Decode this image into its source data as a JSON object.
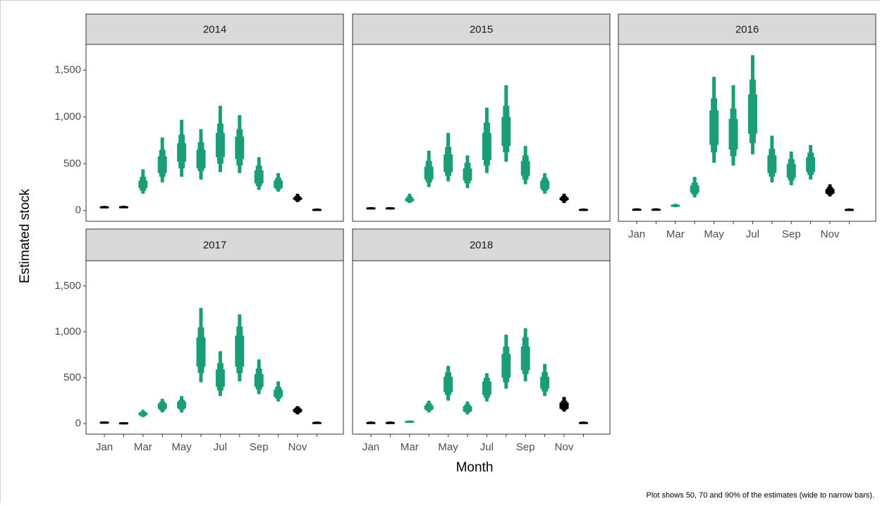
{
  "chart_data": {
    "type": "interval",
    "ylabel": "Estimated stock",
    "xlabel": "Month",
    "caption": "Plot shows 50, 70 and 90% of the estimates (wide to narrow bars).",
    "categories": [
      "Jan",
      null,
      "Mar",
      null,
      "May",
      null,
      "Jul",
      null,
      "Sep",
      null,
      "Nov",
      null
    ],
    "colors": [
      "#000000",
      "#000000",
      "#1b9e77",
      "#1b9e77",
      "#1b9e77",
      "#1b9e77",
      "#1b9e77",
      "#1b9e77",
      "#1b9e77",
      "#1b9e77",
      "#000000",
      "#000000"
    ],
    "ylim": [
      -115,
      1775
    ],
    "yticks": [
      0,
      500,
      {
        "value": 1000,
        "label": "1,000"
      },
      {
        "value": 1500,
        "label": "1,500"
      }
    ],
    "facets": [
      {
        "title": "2014",
        "values": [
          [
            30,
            33,
            36,
            45,
            48,
            50
          ],
          [
            32,
            35,
            38,
            46,
            49,
            52
          ],
          [
            180,
            210,
            240,
            320,
            360,
            440
          ],
          [
            300,
            360,
            400,
            580,
            650,
            780
          ],
          [
            360,
            450,
            520,
            720,
            810,
            970
          ],
          [
            330,
            420,
            450,
            650,
            730,
            870
          ],
          [
            410,
            500,
            570,
            830,
            930,
            1120
          ],
          [
            400,
            480,
            550,
            790,
            870,
            1020
          ],
          [
            220,
            260,
            290,
            430,
            480,
            570
          ],
          [
            200,
            225,
            240,
            320,
            350,
            400
          ],
          [
            90,
            105,
            115,
            140,
            155,
            180
          ],
          [
            8,
            10,
            12,
            18,
            20,
            22
          ]
        ]
      },
      {
        "title": "2015",
        "values": [
          [
            25,
            27,
            28,
            34,
            35,
            37
          ],
          [
            25,
            27,
            28,
            34,
            35,
            37
          ],
          [
            80,
            90,
            100,
            130,
            150,
            180
          ],
          [
            250,
            300,
            330,
            470,
            530,
            640
          ],
          [
            310,
            370,
            410,
            600,
            680,
            830
          ],
          [
            240,
            290,
            320,
            450,
            510,
            590
          ],
          [
            400,
            480,
            540,
            830,
            940,
            1100
          ],
          [
            520,
            620,
            690,
            1000,
            1120,
            1340
          ],
          [
            280,
            330,
            370,
            530,
            590,
            690
          ],
          [
            180,
            210,
            230,
            320,
            350,
            400
          ],
          [
            80,
            100,
            110,
            140,
            155,
            180
          ],
          [
            8,
            10,
            12,
            18,
            20,
            22
          ]
        ]
      },
      {
        "title": "2016",
        "values": [
          [
            10,
            12,
            14,
            20,
            22,
            24
          ],
          [
            10,
            12,
            14,
            20,
            22,
            24
          ],
          [
            35,
            40,
            45,
            62,
            66,
            72
          ],
          [
            140,
            170,
            190,
            270,
            300,
            360
          ],
          [
            510,
            620,
            700,
            1070,
            1200,
            1430
          ],
          [
            480,
            580,
            650,
            980,
            1090,
            1340
          ],
          [
            600,
            720,
            820,
            1240,
            1400,
            1660
          ],
          [
            300,
            360,
            400,
            590,
            660,
            800
          ],
          [
            270,
            320,
            350,
            500,
            550,
            630
          ],
          [
            330,
            380,
            410,
            570,
            620,
            700
          ],
          [
            150,
            170,
            180,
            230,
            250,
            280
          ],
          [
            8,
            10,
            12,
            18,
            20,
            22
          ]
        ]
      },
      {
        "title": "2017",
        "values": [
          [
            15,
            16,
            17,
            21,
            22,
            23
          ],
          [
            8,
            9,
            10,
            14,
            15,
            16
          ],
          [
            70,
            80,
            90,
            120,
            130,
            150
          ],
          [
            120,
            140,
            160,
            220,
            240,
            270
          ],
          [
            120,
            150,
            165,
            240,
            260,
            300
          ],
          [
            450,
            550,
            620,
            940,
            1050,
            1260
          ],
          [
            300,
            360,
            400,
            590,
            660,
            790
          ],
          [
            460,
            550,
            620,
            960,
            1060,
            1190
          ],
          [
            320,
            370,
            400,
            540,
            600,
            700
          ],
          [
            240,
            270,
            290,
            370,
            400,
            460
          ],
          [
            100,
            115,
            125,
            160,
            175,
            190
          ],
          [
            8,
            10,
            12,
            18,
            20,
            22
          ]
        ]
      },
      {
        "title": "2018",
        "values": [
          [
            8,
            10,
            12,
            18,
            20,
            22
          ],
          [
            8,
            10,
            12,
            18,
            20,
            22
          ],
          [
            20,
            22,
            24,
            30,
            32,
            34
          ],
          [
            120,
            140,
            150,
            200,
            220,
            250
          ],
          [
            250,
            310,
            340,
            510,
            560,
            630
          ],
          [
            100,
            120,
            130,
            190,
            210,
            240
          ],
          [
            240,
            280,
            310,
            460,
            500,
            550
          ],
          [
            380,
            450,
            500,
            760,
            840,
            970
          ],
          [
            460,
            540,
            580,
            840,
            940,
            1040
          ],
          [
            300,
            350,
            380,
            510,
            560,
            650
          ],
          [
            130,
            150,
            160,
            230,
            250,
            290
          ],
          [
            8,
            10,
            12,
            18,
            20,
            22
          ]
        ]
      }
    ]
  }
}
